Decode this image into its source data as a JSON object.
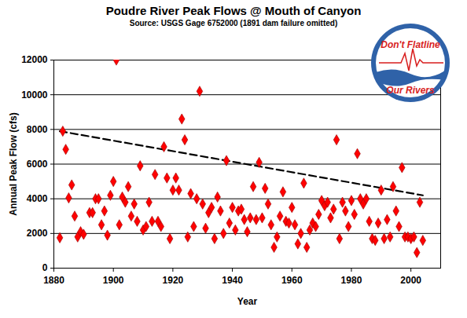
{
  "chart_data": {
    "type": "scatter",
    "title": "Poudre River Peak Flows @ Mouth of Canyon",
    "subtitle": "Source: USGS Gage 6752000 (1891 dam failure omitted)",
    "x_label": "Year",
    "y_label": "Annual Peak Flow (cfs)",
    "x": [
      1882,
      1883,
      1884,
      1885,
      1886,
      1887,
      1888,
      1889,
      1890,
      1892,
      1893,
      1894,
      1895,
      1896,
      1897,
      1898,
      1899,
      1900,
      1901,
      1902,
      1903,
      1904,
      1905,
      1906,
      1907,
      1908,
      1909,
      1910,
      1911,
      1912,
      1913,
      1914,
      1915,
      1916,
      1917,
      1918,
      1919,
      1920,
      1921,
      1922,
      1923,
      1924,
      1925,
      1926,
      1927,
      1928,
      1929,
      1930,
      1931,
      1932,
      1933,
      1934,
      1935,
      1936,
      1937,
      1938,
      1939,
      1940,
      1941,
      1942,
      1943,
      1944,
      1945,
      1946,
      1947,
      1948,
      1949,
      1950,
      1951,
      1952,
      1953,
      1954,
      1955,
      1956,
      1957,
      1958,
      1959,
      1960,
      1961,
      1962,
      1963,
      1964,
      1965,
      1966,
      1967,
      1968,
      1969,
      1970,
      1971,
      1972,
      1973,
      1974,
      1975,
      1976,
      1977,
      1978,
      1979,
      1980,
      1981,
      1982,
      1983,
      1984,
      1985,
      1986,
      1987,
      1988,
      1989,
      1990,
      1991,
      1992,
      1993,
      1994,
      1995,
      1996,
      1997,
      1998,
      1999,
      2000,
      2001,
      2002,
      2003,
      2004
    ],
    "values": [
      1750,
      7900,
      6850,
      4050,
      4800,
      3000,
      1800,
      2100,
      1950,
      3200,
      3200,
      4000,
      4000,
      2500,
      3300,
      1900,
      4200,
      5000,
      12000,
      2500,
      4100,
      3800,
      4700,
      3000,
      3700,
      2700,
      5900,
      2200,
      2400,
      3800,
      2700,
      5400,
      2700,
      2400,
      7000,
      5200,
      1700,
      4500,
      5200,
      4500,
      8600,
      7400,
      1800,
      4300,
      2400,
      4000,
      10200,
      3700,
      2300,
      3200,
      3500,
      1700,
      4100,
      3300,
      2000,
      6200,
      2600,
      3500,
      2200,
      3300,
      3400,
      2800,
      2100,
      2900,
      4700,
      2800,
      6100,
      2900,
      4600,
      3700,
      2500,
      1200,
      1800,
      3000,
      4400,
      2700,
      2600,
      3500,
      2500,
      1400,
      2000,
      4900,
      1200,
      2200,
      2600,
      2400,
      3100,
      3900,
      3600,
      3800,
      2900,
      3400,
      7400,
      1700,
      3800,
      3300,
      2400,
      3900,
      3100,
      6600,
      4000,
      3700,
      4000,
      2700,
      1700,
      1600,
      2600,
      4500,
      1700,
      2800,
      1800,
      4700,
      3300,
      2400,
      5800,
      1800,
      1800,
      1700,
      1800,
      900,
      3800,
      1600
    ],
    "color": "#ff0000",
    "marker": "diamond",
    "xlim": [
      1880,
      2010
    ],
    "ylim": [
      0,
      12000
    ],
    "xticks": [
      1880,
      1900,
      1920,
      1940,
      1960,
      1980,
      2000
    ],
    "yticks": [
      0,
      2000,
      4000,
      6000,
      8000,
      10000,
      12000
    ],
    "grid": true,
    "trend": {
      "x": [
        1882,
        2004
      ],
      "values": [
        7900,
        4200
      ],
      "line_style": "dashed",
      "color": "#000000"
    },
    "annotations": [
      "Don't Flatline",
      "Our Rivers"
    ]
  }
}
